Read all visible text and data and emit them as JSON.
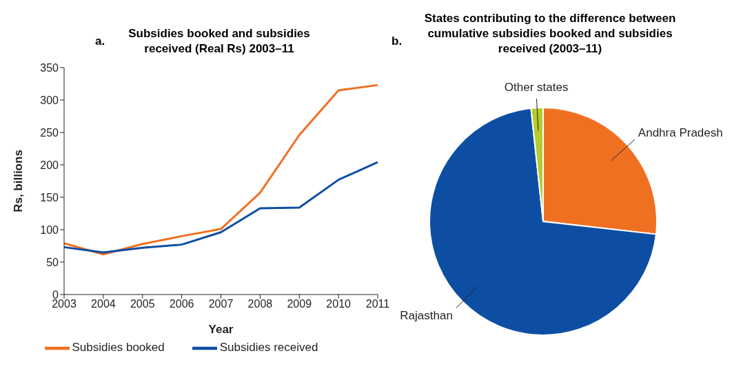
{
  "chart_data": [
    {
      "type": "line",
      "title": "Subsidies booked and subsidies received (Real Rs) 2003–11",
      "annotations": [
        "a."
      ],
      "xlabel": "Year",
      "ylabel": "Rs, billions",
      "categories": [
        "2003",
        "2004",
        "2005",
        "2006",
        "2007",
        "2008",
        "2009",
        "2010",
        "2011"
      ],
      "series": [
        {
          "name": "Subsidies booked",
          "color": "#f07022",
          "values": [
            79,
            62,
            78,
            90,
            101,
            157,
            246,
            315,
            323
          ]
        },
        {
          "name": "Subsidies received",
          "color": "#0d4ea3",
          "values": [
            73,
            65,
            72,
            77,
            96,
            133,
            134,
            177,
            204
          ]
        }
      ],
      "ylim": [
        0,
        350
      ],
      "yticks": [
        0,
        50,
        100,
        150,
        200,
        250,
        300,
        350
      ],
      "grid": false,
      "legend": "bottom"
    },
    {
      "type": "pie",
      "title": "States contributing to the difference between cumulative subsidies booked and subsidies received (2003–11)",
      "annotations": [
        "b."
      ],
      "categories": [
        "Andhra Pradesh",
        "Rajasthan",
        "Other states"
      ],
      "values": [
        26.8,
        71.5,
        1.7
      ],
      "colors": [
        "#f07022",
        "#0d4ea3",
        "#b5cc2e"
      ]
    }
  ]
}
